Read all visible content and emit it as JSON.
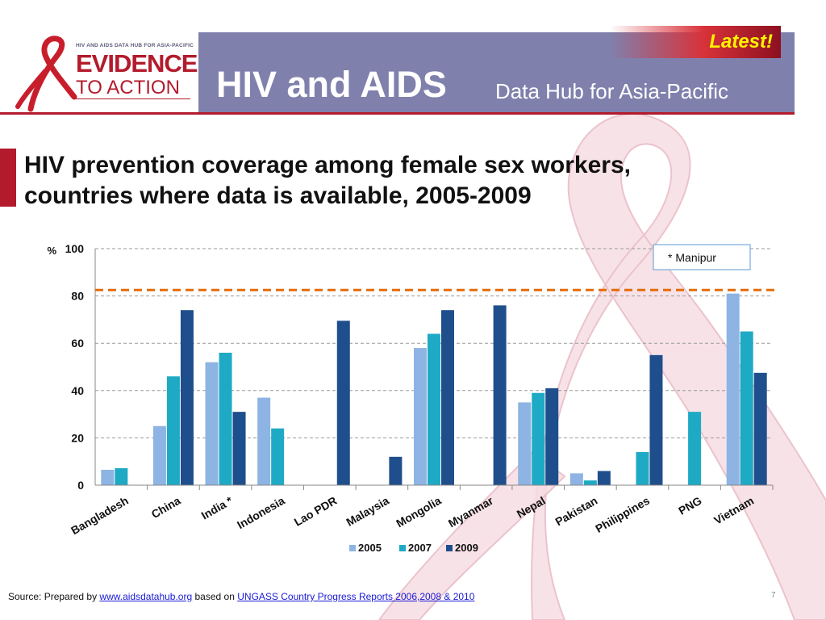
{
  "header": {
    "logo_tagline": "HIV AND AIDS DATA HUB FOR ASIA-PACIFIC",
    "logo_evidence": "EVIDENCE",
    "logo_action": "TO ACTION",
    "title": "HIV and AIDS",
    "subtitle": "Data Hub for Asia-Pacific",
    "latest_label": "Latest!"
  },
  "slide": {
    "title_line1": "HIV prevention coverage among female sex workers,",
    "title_line2": "countries where data is available, 2005-2009",
    "page_number": "7"
  },
  "source": {
    "prefix": "Source:  Prepared by",
    "link1": "www.aidsdatahub.org",
    "middle": "based on",
    "link2": "UNGASS Country Progress Reports  2006,2008 & 2010"
  },
  "colors": {
    "header_bg": "#8080ad",
    "accent_red": "#b31b2c",
    "series_2005": "#8db4e2",
    "series_2007": "#1eaac4",
    "series_2009": "#1f4e8c",
    "target_line": "#e46c0a"
  },
  "chart_data": {
    "type": "bar",
    "ylabel": "%",
    "ylim": [
      0,
      100
    ],
    "yticks": [
      0,
      20,
      40,
      60,
      80,
      100
    ],
    "grid": true,
    "legend_position": "bottom",
    "reference_line": 82.5,
    "annotation": "* Manipur",
    "categories": [
      "Bangladesh",
      "China",
      "India *",
      "Indonesia",
      "Lao PDR",
      "Malaysia",
      "Mongolia",
      "Myanmar",
      "Nepal",
      "Pakistan",
      "Philippines",
      "PNG",
      "Vietnam"
    ],
    "series": [
      {
        "name": "2005",
        "values": [
          6.5,
          25,
          52,
          37,
          null,
          null,
          58,
          null,
          35,
          5,
          null,
          null,
          81
        ]
      },
      {
        "name": "2007",
        "values": [
          7.2,
          46,
          56,
          24,
          null,
          null,
          64,
          null,
          39,
          2,
          14,
          31,
          65
        ]
      },
      {
        "name": "2009",
        "values": [
          null,
          74,
          31,
          null,
          69.5,
          12,
          74,
          76,
          41,
          6,
          55,
          null,
          47.5
        ]
      }
    ]
  }
}
